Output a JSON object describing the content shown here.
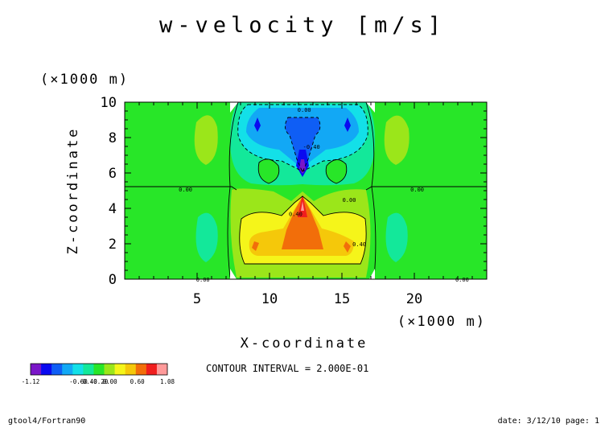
{
  "chart_data": {
    "type": "heatmap",
    "title": "w-velocity [m/s]",
    "xlabel": "X-coordinate",
    "ylabel": "Z-coordinate",
    "x_unit": "(×1000 m)",
    "y_unit": "(×1000 m)",
    "xlim": [
      0,
      25
    ],
    "ylim": [
      0,
      10
    ],
    "xticks": [
      5,
      10,
      15,
      20
    ],
    "yticks": [
      0,
      2,
      4,
      6,
      8,
      10
    ],
    "colorbar": {
      "levels": [
        -1.12,
        -1.0,
        -0.8,
        -0.6,
        -0.4,
        -0.2,
        0.0,
        0.2,
        0.4,
        0.6,
        0.8,
        1.0,
        1.08
      ],
      "tick_labels": [
        "-1.12",
        "-0.60",
        "-0.40",
        "-0.20",
        "0.00",
        "0.60",
        "1.08"
      ],
      "colors": [
        "#7a16c8",
        "#0a0af0",
        "#0f5ef5",
        "#12a8f5",
        "#13e0e8",
        "#13e89a",
        "#28e628",
        "#9be61a",
        "#f5f51a",
        "#f5c80a",
        "#f26e0a",
        "#f01e1e",
        "#ff9a9a"
      ]
    },
    "contour_labels": [
      {
        "x": 12.4,
        "y": 9.6,
        "text": "0.00"
      },
      {
        "x": 12.9,
        "y": 7.5,
        "text": "-0.40"
      },
      {
        "x": 4.2,
        "y": 5.1,
        "text": "0.00"
      },
      {
        "x": 11.8,
        "y": 3.7,
        "text": "0.40"
      },
      {
        "x": 15.5,
        "y": 4.5,
        "text": "0.00"
      },
      {
        "x": 20.2,
        "y": 5.1,
        "text": "0.00"
      },
      {
        "x": 16.2,
        "y": 2.0,
        "text": "0.40"
      },
      {
        "x": 5.4,
        "y": 0.0,
        "text": "0.00"
      },
      {
        "x": 23.3,
        "y": 0.0,
        "text": "0.00"
      }
    ],
    "contour_interval": "CONTOUR INTERVAL = 2.000E-01",
    "grid": false,
    "legend": "bottom-left colorbar"
  },
  "footer": {
    "left": "gtool4/Fortran90",
    "right": "date: 3/12/10 page: 1"
  }
}
